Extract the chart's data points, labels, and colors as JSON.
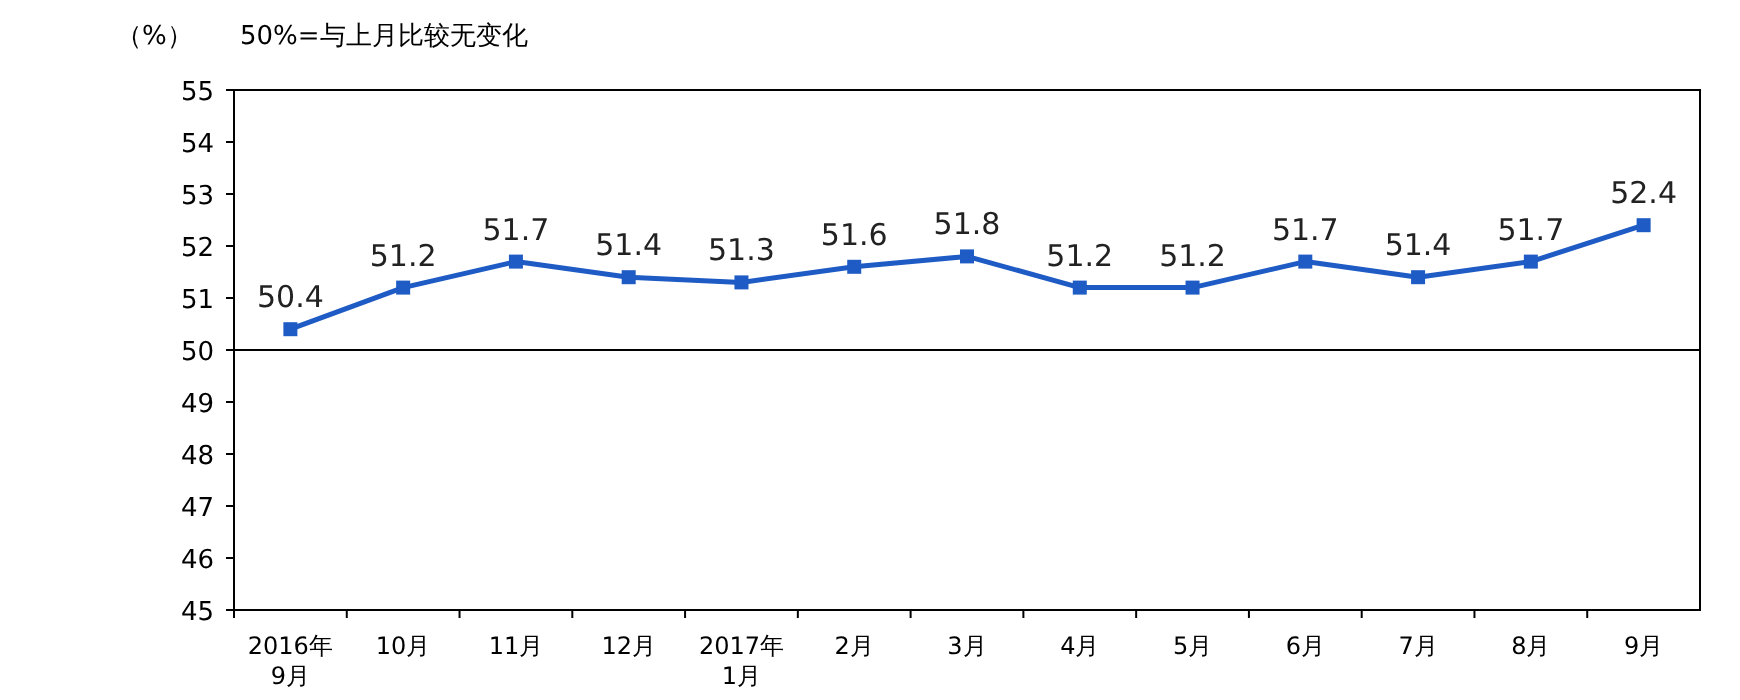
{
  "chart_data": {
    "type": "line",
    "ylabel": "（%）",
    "annotations": [
      "50%=与上月比较无变化"
    ],
    "categories": [
      "2016年\n9月",
      "10月",
      "11月",
      "12月",
      "2017年\n1月",
      "2月",
      "3月",
      "4月",
      "5月",
      "6月",
      "7月",
      "8月",
      "9月"
    ],
    "series": [
      {
        "color": "#1f5bc4",
        "values": [
          50.4,
          51.2,
          51.7,
          51.4,
          51.3,
          51.6,
          51.8,
          51.2,
          51.2,
          51.7,
          51.4,
          51.7,
          52.4
        ]
      }
    ],
    "ylim": [
      45,
      55
    ],
    "yticks": [
      45,
      46,
      47,
      48,
      49,
      50,
      51,
      52,
      53,
      54,
      55
    ],
    "ref_lines": [
      {
        "axis": "y",
        "value": 50,
        "color": "#000000"
      }
    ],
    "data_labels": true,
    "marker": "square",
    "line_style": "solid",
    "grid": false
  }
}
